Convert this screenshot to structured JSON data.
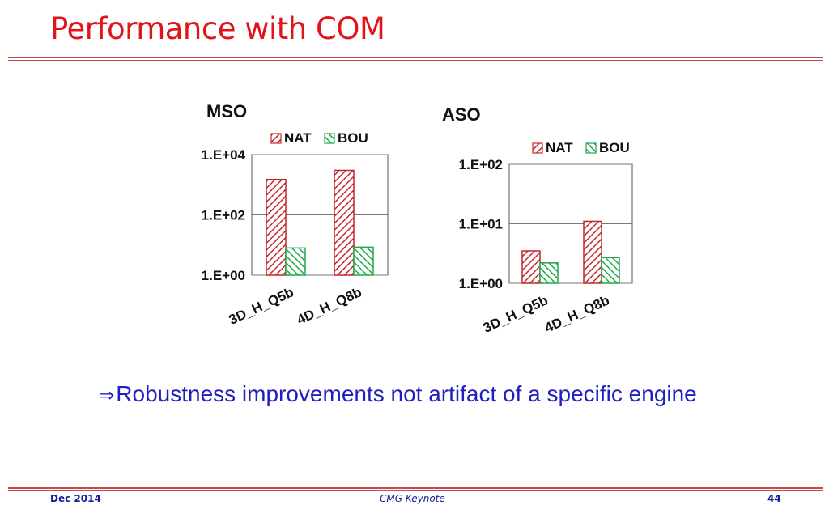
{
  "slide": {
    "title": "Performance with COM",
    "conclusion_arrow": "⇒",
    "conclusion_text": "Robustness improvements not artifact of a specific engine"
  },
  "footer": {
    "date": "Dec 2014",
    "event": "CMG Keynote",
    "page": "44"
  },
  "colors": {
    "title": "#e0151b",
    "nat": "#c0282d",
    "bou": "#1fa84a",
    "conclusion": "#1f1fbf",
    "footer": "#1a1a99"
  },
  "chart_data": [
    {
      "type": "bar",
      "title": "MSO",
      "scale": "log10",
      "categories": [
        "3D_H_Q5b",
        "4D_H_Q8b"
      ],
      "series": [
        {
          "name": "NAT",
          "values": [
            1500,
            3000
          ]
        },
        {
          "name": "BOU",
          "values": [
            8,
            8.5
          ]
        }
      ],
      "yticks": [
        1,
        100,
        10000
      ],
      "ytick_labels": [
        "1.E+00",
        "1.E+02",
        "1.E+04"
      ],
      "ylim": [
        1,
        10000
      ],
      "legend": "top",
      "grid": true,
      "xlabel": "",
      "ylabel": ""
    },
    {
      "type": "bar",
      "title": "ASO",
      "scale": "log10",
      "categories": [
        "3D_H_Q5b",
        "4D_H_Q8b"
      ],
      "series": [
        {
          "name": "NAT",
          "values": [
            3.5,
            11
          ]
        },
        {
          "name": "BOU",
          "values": [
            2.2,
            2.7
          ]
        }
      ],
      "yticks": [
        1,
        10,
        100
      ],
      "ytick_labels": [
        "1.E+00",
        "1.E+01",
        "1.E+02"
      ],
      "ylim": [
        1,
        100
      ],
      "legend": "top",
      "grid": true,
      "xlabel": "",
      "ylabel": ""
    }
  ]
}
